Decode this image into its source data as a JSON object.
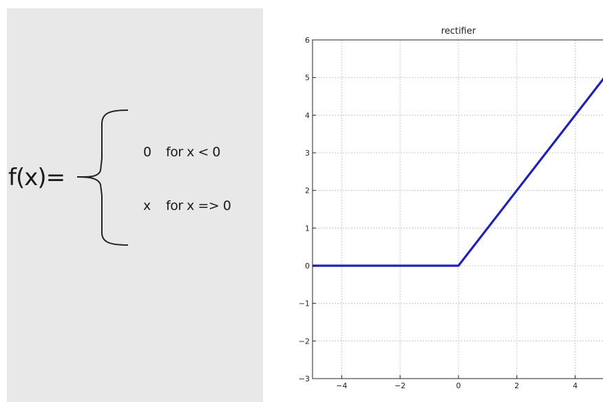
{
  "formula": {
    "lhs": "f(x)=",
    "cases": [
      {
        "value": "0",
        "condition": "for x < 0"
      },
      {
        "value": "x",
        "condition": "for x => 0"
      }
    ]
  },
  "colors": {
    "panel_bg": "#e8e8e8",
    "line": "#1f1fbf",
    "grid": "#c8c8c8"
  },
  "chart_data": {
    "type": "line",
    "title": "rectifier",
    "xlabel": "",
    "ylabel": "",
    "xlim": [
      -5,
      5
    ],
    "ylim": [
      -3,
      6
    ],
    "xticks": [
      -4,
      -2,
      0,
      2,
      4
    ],
    "yticks": [
      -3,
      -2,
      -1,
      0,
      1,
      2,
      3,
      4,
      5,
      6
    ],
    "xtick_labels": [
      "−4",
      "−2",
      "0",
      "2",
      "4"
    ],
    "ytick_labels": [
      "−3",
      "−2",
      "−1",
      "0",
      "1",
      "2",
      "3",
      "4",
      "5",
      "6"
    ],
    "grid": true,
    "series": [
      {
        "x": [
          -5,
          0,
          5
        ],
        "y": [
          0,
          0,
          5
        ]
      }
    ]
  }
}
